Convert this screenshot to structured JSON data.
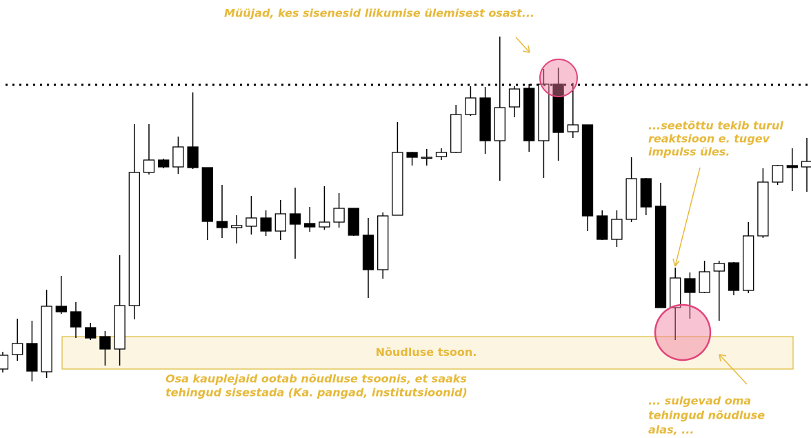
{
  "chart_data": {
    "type": "candlestick",
    "ylim": [
      0,
      120
    ],
    "up_color": "#ffffff",
    "down_color": "#000000",
    "open": [
      13,
      17.2,
      20.4,
      12.2,
      31.2,
      29.6,
      25,
      22.4,
      18.8,
      31.4,
      70,
      73.6,
      71.6,
      77.4,
      71.4,
      55.8,
      54,
      54.4,
      56.8,
      53,
      58,
      55.2,
      54.2,
      55.6,
      59.6,
      51.8,
      41.8,
      57.6,
      75.8,
      74.2,
      74.6,
      75.8,
      86.8,
      91.6,
      79.2,
      89,
      94.4,
      79.2,
      95.6,
      81.8,
      83.8,
      57.4,
      50.6,
      56.4,
      68.2,
      60.2,
      30.8,
      39.2,
      35.2,
      41.4,
      43.8,
      35.8,
      51.6,
      67.2,
      72,
      71.6
    ],
    "high": [
      18,
      27.6,
      27,
      36,
      40,
      32.4,
      26.4,
      24,
      46,
      84,
      84,
      74,
      80.4,
      93.2,
      71.4,
      66.4,
      57.6,
      63.2,
      59,
      62,
      65.6,
      60,
      66,
      64,
      59.6,
      56.8,
      58.4,
      84.6,
      76,
      76.8,
      77,
      89.6,
      95,
      94.8,
      109.4,
      95,
      95.6,
      100,
      100.4,
      96,
      83.8,
      59,
      59,
      74.4,
      68.4,
      67,
      42.4,
      41,
      44.4,
      44.4,
      44,
      55.6,
      71.2,
      72.2,
      77,
      80
    ],
    "low": [
      12,
      15.4,
      9.4,
      10.4,
      29,
      22,
      21.4,
      14,
      14,
      27.4,
      69.4,
      71.2,
      69.6,
      71,
      50.4,
      51,
      49.4,
      52,
      51.6,
      50.4,
      45,
      52.8,
      53.4,
      54,
      51.6,
      33.6,
      39.2,
      57.6,
      72,
      72,
      73.6,
      75.6,
      86.4,
      75.4,
      67.6,
      86,
      76,
      68.4,
      73.4,
      80,
      53,
      50.4,
      48.4,
      55.6,
      57.6,
      30.8,
      21.4,
      27.6,
      35,
      27,
      34.4,
      35,
      51,
      66.4,
      64.6,
      64.4
    ],
    "close": [
      17,
      20.4,
      12.4,
      31.2,
      29.6,
      25.2,
      22,
      18.8,
      31.4,
      70,
      73.6,
      71.6,
      77.4,
      71.4,
      55.8,
      54,
      54.6,
      56.8,
      53,
      58,
      55,
      54.2,
      55.6,
      59.6,
      51.8,
      41.8,
      57.4,
      75.8,
      74.4,
      74.4,
      75.8,
      86.8,
      91.6,
      79.2,
      88.8,
      94.2,
      79.2,
      95.6,
      81.6,
      83.8,
      57.4,
      50.6,
      56.4,
      68.2,
      60,
      30.8,
      39.4,
      35.2,
      41.2,
      43.6,
      35.8,
      51.6,
      67.2,
      72,
      71.4,
      73.2
    ],
    "reference_line": {
      "value": 95.4
    },
    "zone": {
      "label": "Nõudluse tsoon.",
      "from": 13,
      "to": 22.4,
      "color": "#fbf5e2",
      "border": "#e3c75a"
    },
    "annotations": [
      {
        "lines": [
          "Müüjad, kes sisenesid liikumise ülemisest osast..."
        ]
      },
      {
        "lines": [
          "...seetõttu tekib turul",
          "reaktsioon e. tugev",
          "impulss üles."
        ]
      },
      {
        "lines": [
          "Osa kauplejaid ootab nõudluse tsoonis, et saaks",
          "tehingud sisestada (Ka. pangad, institutsioonid)"
        ]
      },
      {
        "lines": [
          "... sulgevad oma",
          "tehingud nõudluse",
          "alas, ..."
        ]
      }
    ],
    "annotation_color": "#e6b93a"
  }
}
